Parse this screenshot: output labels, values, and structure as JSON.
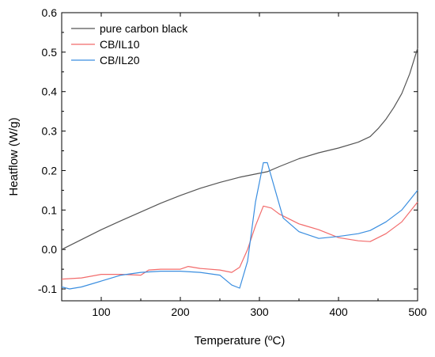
{
  "chart_data": {
    "type": "line",
    "title": "",
    "xlabel": "Temperature (ºC)",
    "ylabel": "Heatflow (W/g)",
    "xlim": [
      50,
      500
    ],
    "ylim": [
      -0.13,
      0.6
    ],
    "x_ticks": [
      100,
      200,
      300,
      400,
      500
    ],
    "x_tick_labels": [
      "100",
      "200",
      "300",
      "400",
      "500"
    ],
    "y_ticks": [
      -0.1,
      0.0,
      0.1,
      0.2,
      0.3,
      0.4,
      0.5,
      0.6
    ],
    "y_tick_labels": [
      "-0.1",
      "0.0",
      "0.1",
      "0.2",
      "0.3",
      "0.4",
      "0.5",
      "0.6"
    ],
    "grid": false,
    "legend_position": "top-left",
    "series": [
      {
        "name": "pure carbon black",
        "color": "#555555",
        "points": [
          [
            50,
            0.0
          ],
          [
            75,
            0.025
          ],
          [
            100,
            0.05
          ],
          [
            125,
            0.073
          ],
          [
            150,
            0.095
          ],
          [
            175,
            0.117
          ],
          [
            200,
            0.137
          ],
          [
            225,
            0.155
          ],
          [
            250,
            0.17
          ],
          [
            275,
            0.183
          ],
          [
            300,
            0.193
          ],
          [
            310,
            0.197
          ],
          [
            325,
            0.21
          ],
          [
            350,
            0.23
          ],
          [
            375,
            0.245
          ],
          [
            400,
            0.257
          ],
          [
            425,
            0.272
          ],
          [
            440,
            0.286
          ],
          [
            450,
            0.306
          ],
          [
            460,
            0.33
          ],
          [
            470,
            0.36
          ],
          [
            480,
            0.395
          ],
          [
            490,
            0.445
          ],
          [
            500,
            0.51
          ]
        ]
      },
      {
        "name": "CB/IL10",
        "color": "#f26b6b",
        "points": [
          [
            50,
            -0.075
          ],
          [
            75,
            -0.072
          ],
          [
            100,
            -0.063
          ],
          [
            125,
            -0.063
          ],
          [
            150,
            -0.065
          ],
          [
            160,
            -0.052
          ],
          [
            175,
            -0.05
          ],
          [
            200,
            -0.05
          ],
          [
            210,
            -0.043
          ],
          [
            225,
            -0.048
          ],
          [
            250,
            -0.052
          ],
          [
            265,
            -0.058
          ],
          [
            275,
            -0.045
          ],
          [
            285,
            0.0
          ],
          [
            295,
            0.06
          ],
          [
            305,
            0.11
          ],
          [
            315,
            0.105
          ],
          [
            325,
            0.09
          ],
          [
            350,
            0.065
          ],
          [
            375,
            0.05
          ],
          [
            400,
            0.03
          ],
          [
            425,
            0.022
          ],
          [
            440,
            0.02
          ],
          [
            460,
            0.04
          ],
          [
            480,
            0.07
          ],
          [
            500,
            0.12
          ]
        ]
      },
      {
        "name": "CB/IL20",
        "color": "#3a8ee0",
        "points": [
          [
            50,
            -0.095
          ],
          [
            60,
            -0.1
          ],
          [
            75,
            -0.095
          ],
          [
            100,
            -0.08
          ],
          [
            125,
            -0.065
          ],
          [
            150,
            -0.058
          ],
          [
            175,
            -0.055
          ],
          [
            200,
            -0.055
          ],
          [
            225,
            -0.058
          ],
          [
            250,
            -0.065
          ],
          [
            265,
            -0.09
          ],
          [
            275,
            -0.098
          ],
          [
            285,
            -0.03
          ],
          [
            295,
            0.12
          ],
          [
            305,
            0.22
          ],
          [
            310,
            0.22
          ],
          [
            320,
            0.15
          ],
          [
            330,
            0.08
          ],
          [
            350,
            0.045
          ],
          [
            375,
            0.028
          ],
          [
            400,
            0.033
          ],
          [
            425,
            0.04
          ],
          [
            440,
            0.048
          ],
          [
            460,
            0.07
          ],
          [
            480,
            0.1
          ],
          [
            500,
            0.15
          ]
        ]
      }
    ]
  }
}
